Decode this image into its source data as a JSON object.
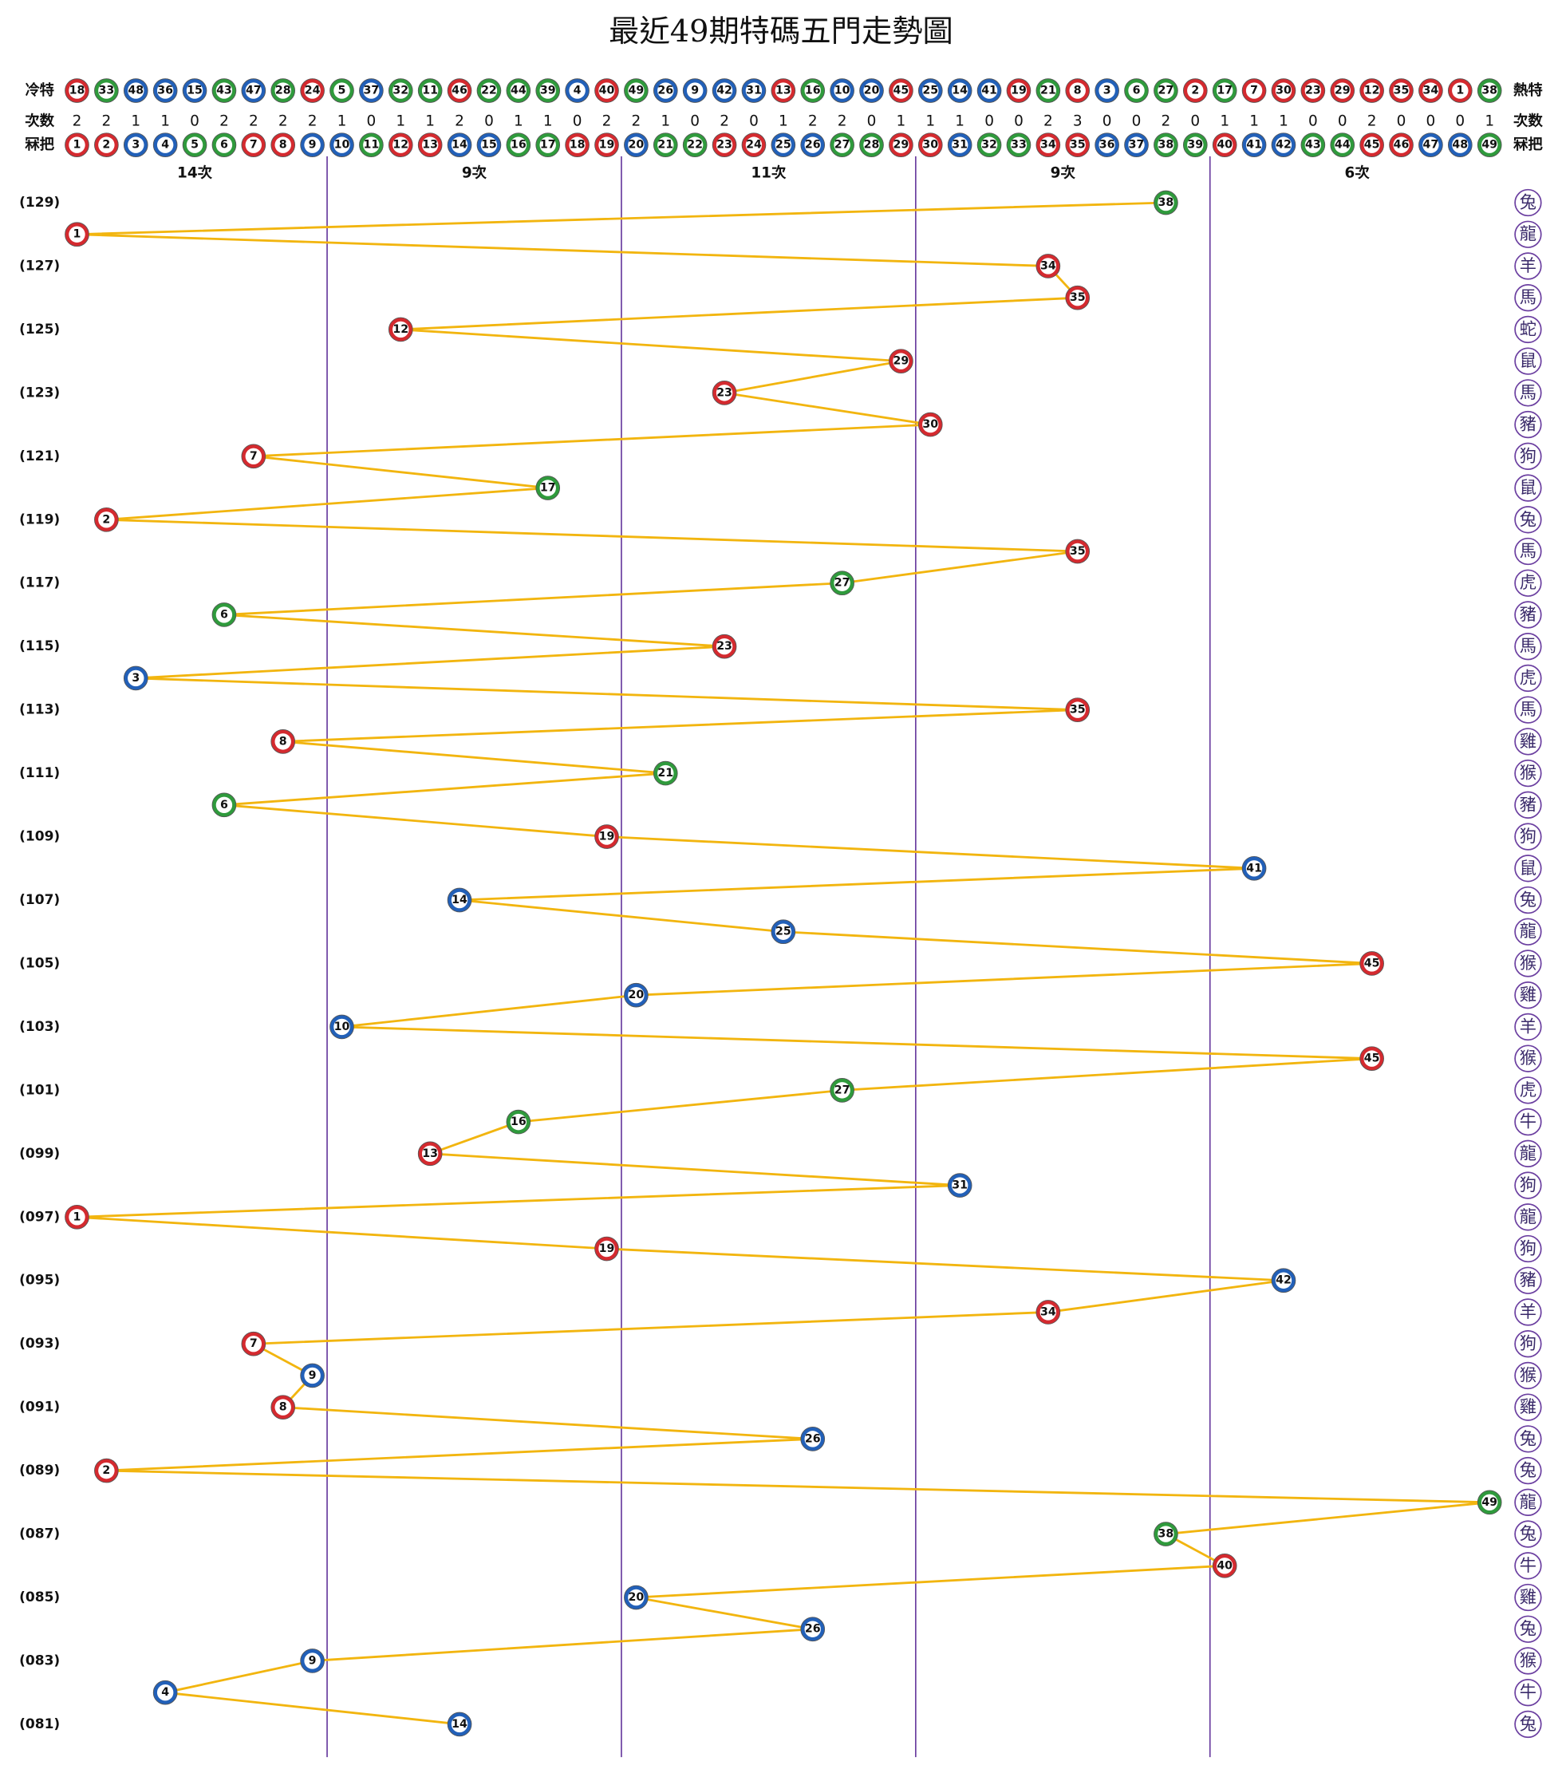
{
  "chart_data": {
    "type": "trend",
    "title": "最近49期特碼五門走勢圖",
    "cold_label": "冷特",
    "hot_label": "熱特",
    "hot_cold": [
      18,
      33,
      48,
      36,
      15,
      43,
      47,
      28,
      24,
      5,
      37,
      32,
      11,
      46,
      22,
      44,
      39,
      4,
      40,
      49,
      26,
      9,
      42,
      31,
      13,
      16,
      10,
      20,
      45,
      25,
      14,
      41,
      19,
      21,
      8,
      3,
      6,
      27,
      2,
      17,
      7,
      30,
      23,
      29,
      12,
      35,
      34,
      1,
      38
    ],
    "count_label": "次数",
    "count_label_right": "次数",
    "counts": [
      2,
      2,
      1,
      1,
      0,
      2,
      2,
      2,
      2,
      1,
      0,
      1,
      1,
      2,
      0,
      1,
      1,
      0,
      2,
      2,
      1,
      0,
      2,
      0,
      1,
      2,
      2,
      0,
      1,
      1,
      1,
      0,
      0,
      2,
      3,
      0,
      0,
      2,
      0,
      1,
      1,
      1,
      0,
      0,
      2,
      0,
      0,
      0,
      1
    ],
    "number_label": "冧把",
    "number_label_right": "冧把",
    "numbers": [
      1,
      2,
      3,
      4,
      5,
      6,
      7,
      8,
      9,
      10,
      11,
      12,
      13,
      14,
      15,
      16,
      17,
      18,
      19,
      20,
      21,
      22,
      23,
      24,
      25,
      26,
      27,
      28,
      29,
      30,
      31,
      32,
      33,
      34,
      35,
      36,
      37,
      38,
      39,
      40,
      41,
      42,
      43,
      44,
      45,
      46,
      47,
      48,
      49
    ],
    "groups": [
      {
        "label": "14次",
        "from": 1,
        "to": 9
      },
      {
        "label": "9次",
        "from": 10,
        "to": 19
      },
      {
        "label": "11次",
        "from": 20,
        "to": 29
      },
      {
        "label": "9次",
        "from": 30,
        "to": 39
      },
      {
        "label": "6次",
        "from": 40,
        "to": 49
      }
    ],
    "periods": [
      "(129)",
      null,
      "(127)",
      null,
      "(125)",
      null,
      "(123)",
      null,
      "(121)",
      null,
      "(119)",
      null,
      "(117)",
      null,
      "(115)",
      null,
      "(113)",
      null,
      "(111)",
      null,
      "(109)",
      null,
      "(107)",
      null,
      "(105)",
      null,
      "(103)",
      null,
      "(101)",
      null,
      "(099)",
      null,
      "(097)",
      null,
      "(095)",
      null,
      "(093)",
      null,
      "(091)",
      null,
      "(089)",
      null,
      "(087)",
      null,
      "(085)",
      null,
      "(083)",
      null,
      "(081)"
    ],
    "values": [
      38,
      1,
      34,
      35,
      12,
      29,
      23,
      30,
      7,
      17,
      2,
      35,
      27,
      6,
      23,
      3,
      35,
      8,
      21,
      6,
      19,
      41,
      14,
      25,
      45,
      20,
      10,
      45,
      27,
      16,
      13,
      31,
      1,
      19,
      42,
      34,
      7,
      9,
      8,
      26,
      2,
      49,
      38,
      40,
      20,
      26,
      9,
      4,
      14
    ],
    "zodiac": [
      "兔",
      "龍",
      "羊",
      "馬",
      "蛇",
      "鼠",
      "馬",
      "豬",
      "狗",
      "鼠",
      "兔",
      "馬",
      "虎",
      "豬",
      "馬",
      "虎",
      "馬",
      "雞",
      "猴",
      "豬",
      "狗",
      "鼠",
      "兔",
      "龍",
      "猴",
      "雞",
      "羊",
      "猴",
      "虎",
      "牛",
      "龍",
      "狗",
      "龍",
      "狗",
      "豬",
      "羊",
      "狗",
      "猴",
      "雞",
      "兔",
      "兔",
      "龍",
      "兔",
      "牛",
      "雞",
      "兔",
      "猴",
      "牛",
      "兔"
    ],
    "line_color": "#f2b50f",
    "divider_color": "#6b3fa0",
    "palette": {
      "red": "#d42a2f",
      "blue": "#2260b8",
      "green": "#2f9a3c"
    },
    "number_color": [
      "red",
      "red",
      "blue",
      "blue",
      "green",
      "green",
      "red",
      "red",
      "blue",
      "blue",
      "green",
      "red",
      "red",
      "blue",
      "blue",
      "green",
      "green",
      "red",
      "red",
      "blue",
      "green",
      "green",
      "red",
      "red",
      "blue",
      "blue",
      "green",
      "green",
      "red",
      "red",
      "blue",
      "green",
      "green",
      "red",
      "red",
      "blue",
      "blue",
      "green",
      "green",
      "red",
      "blue",
      "blue",
      "green",
      "green",
      "red",
      "red",
      "blue",
      "blue",
      "green"
    ]
  }
}
